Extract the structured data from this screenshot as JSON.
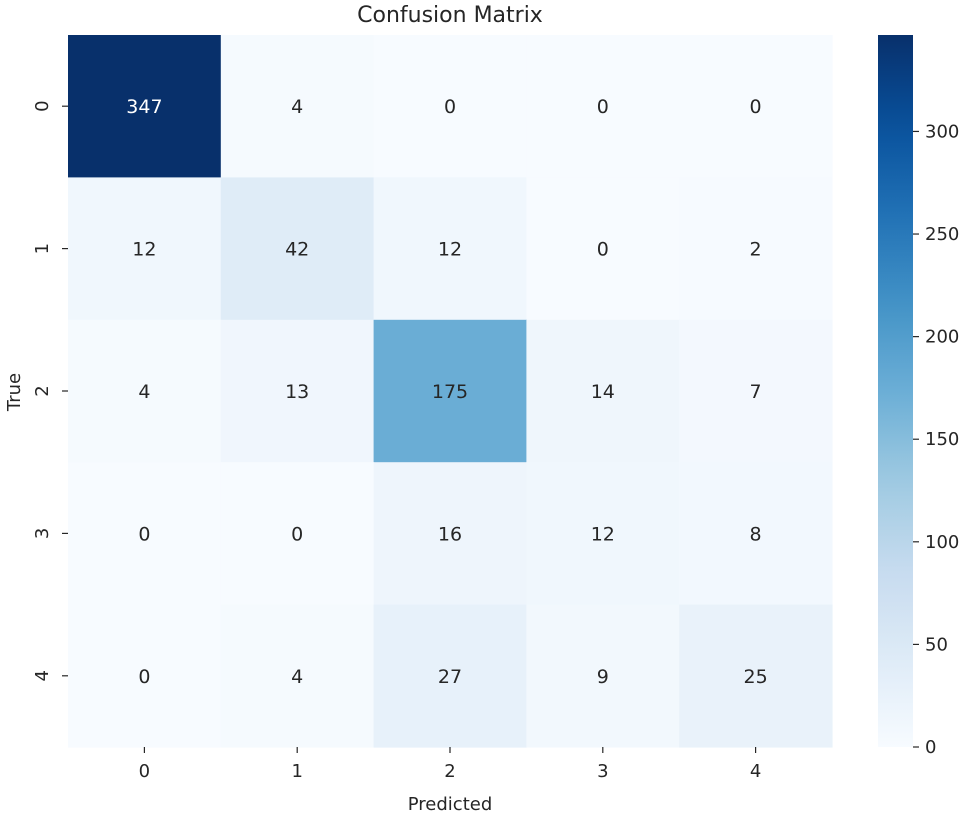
{
  "chart_data": {
    "type": "heatmap",
    "title": "Confusion Matrix",
    "xlabel": "Predicted",
    "ylabel": "True",
    "x_categories": [
      "0",
      "1",
      "2",
      "3",
      "4"
    ],
    "y_categories": [
      "0",
      "1",
      "2",
      "3",
      "4"
    ],
    "values": [
      [
        347,
        4,
        0,
        0,
        0
      ],
      [
        12,
        42,
        12,
        0,
        2
      ],
      [
        4,
        13,
        175,
        14,
        7
      ],
      [
        0,
        0,
        16,
        12,
        8
      ],
      [
        0,
        4,
        27,
        9,
        25
      ]
    ],
    "colormap": "Blues",
    "color_range": [
      0,
      347
    ],
    "colorbar": {
      "ticks": [
        0,
        50,
        100,
        150,
        200,
        250,
        300
      ],
      "tick_labels": [
        "0",
        "50",
        "100",
        "150",
        "200",
        "250",
        "300"
      ]
    },
    "colors": {
      "low": "#f7fbff",
      "high": "#08306b",
      "text_dark": "#262626",
      "text_light": "#ffffff"
    }
  }
}
